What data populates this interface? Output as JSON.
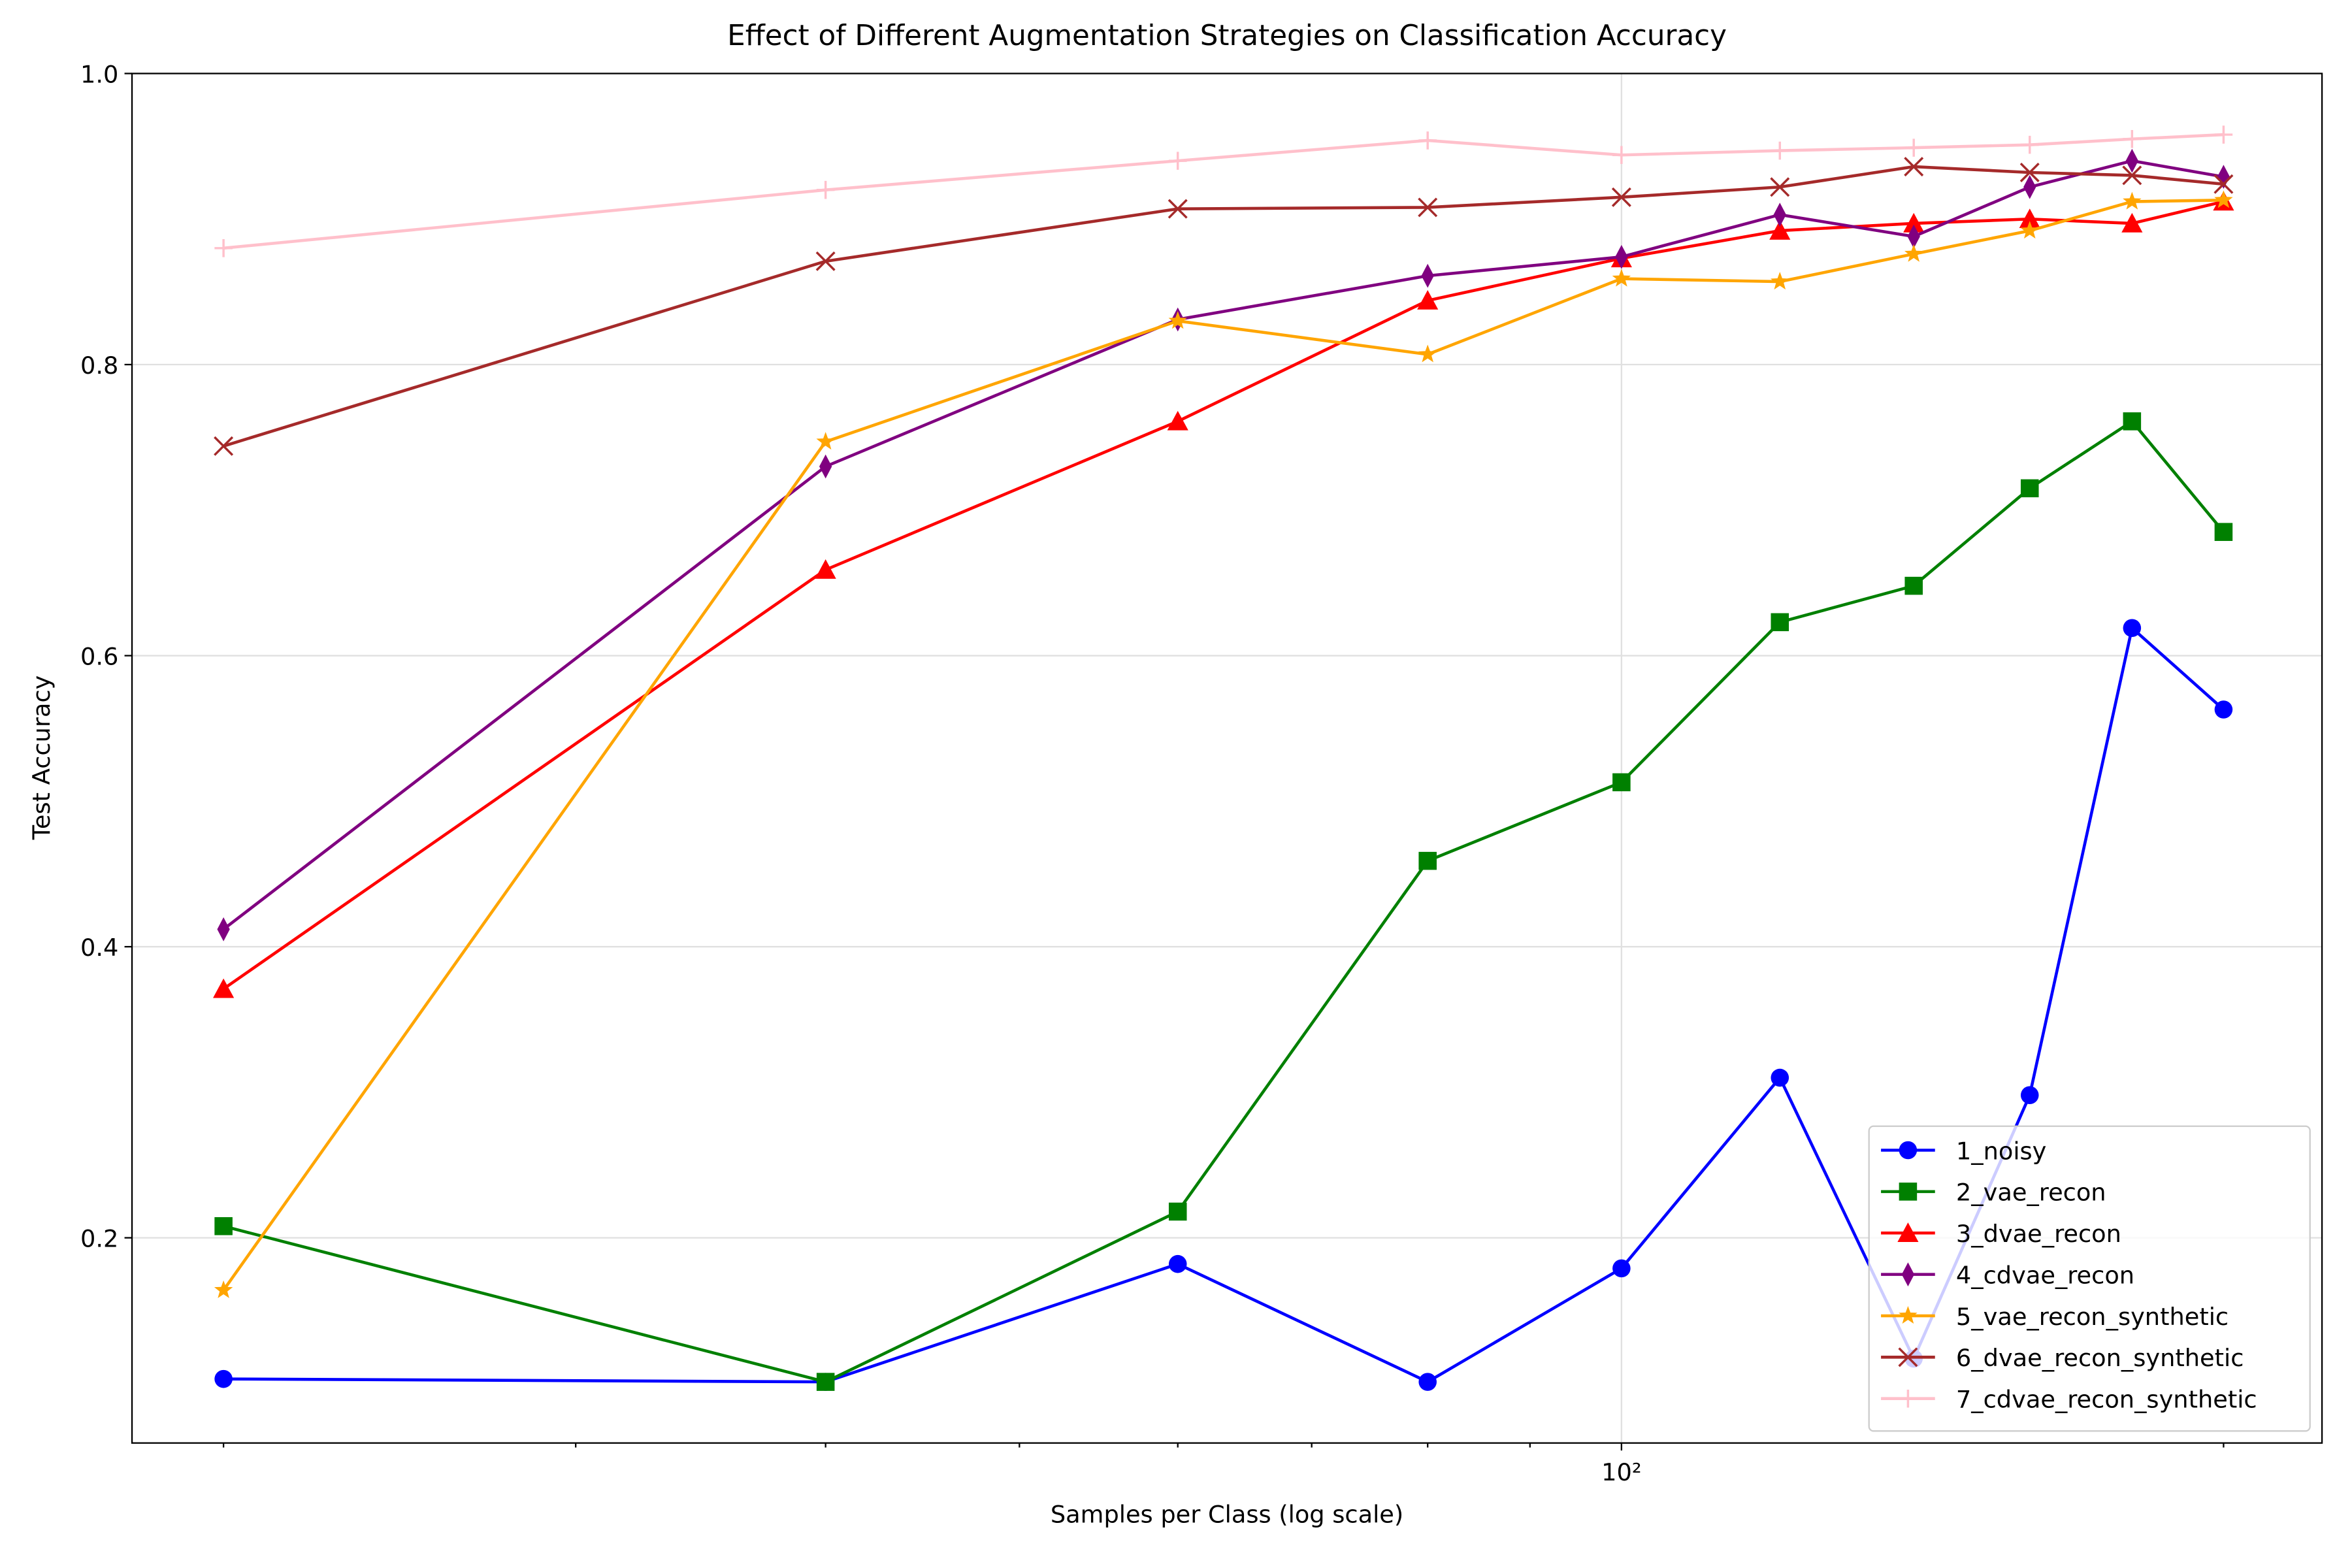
{
  "chart_data": {
    "type": "line",
    "title": "Effect of Different Augmentation Strategies on Classification Accuracy",
    "x_label": "Samples per Class (log scale)",
    "y_label": "Test Accuracy",
    "x_log": true,
    "grid": true,
    "legend_position": "lower right",
    "x": [
      20,
      40,
      60,
      80,
      100,
      120,
      140,
      160,
      180,
      200
    ],
    "xlim": [
      18,
      224
    ],
    "xticks": [
      {
        "value": 100,
        "label": "10²"
      }
    ],
    "xminor_ticks": [
      20,
      30,
      40,
      50,
      60,
      70,
      80,
      90,
      200
    ],
    "ylim": [
      0.059,
      1.0
    ],
    "yticks": [
      0.2,
      0.4,
      0.6,
      0.8,
      {
        "value": 1.0,
        "label": "1.0"
      }
    ],
    "series": [
      {
        "name": "1_noisy",
        "color": "#0000ff",
        "marker": "circle",
        "values": [
          0.103,
          0.101,
          0.182,
          0.101,
          0.179,
          0.31,
          0.117,
          0.298,
          0.619,
          0.563
        ]
      },
      {
        "name": "2_vae_recon",
        "color": "#008000",
        "marker": "square",
        "values": [
          0.208,
          0.101,
          0.218,
          0.459,
          0.513,
          0.623,
          0.648,
          0.715,
          0.761,
          0.685
        ]
      },
      {
        "name": "3_dvae_recon",
        "color": "#ff0000",
        "marker": "triangle",
        "values": [
          0.371,
          0.659,
          0.761,
          0.844,
          0.873,
          0.892,
          0.897,
          0.9,
          0.897,
          0.912
        ]
      },
      {
        "name": "4_cdvae_recon",
        "color": "#800080",
        "marker": "thin_diamond",
        "values": [
          0.412,
          0.73,
          0.831,
          0.861,
          0.874,
          0.903,
          0.888,
          0.922,
          0.94,
          0.929
        ]
      },
      {
        "name": "5_vae_recon_synthetic",
        "color": "#ffa500",
        "marker": "star",
        "values": [
          0.164,
          0.747,
          0.83,
          0.807,
          0.859,
          0.857,
          0.876,
          0.892,
          0.912,
          0.913
        ]
      },
      {
        "name": "6_dvae_recon_synthetic",
        "color": "#a52a2a",
        "marker": "x",
        "values": [
          0.744,
          0.871,
          0.907,
          0.908,
          0.915,
          0.922,
          0.936,
          0.932,
          0.93,
          0.924
        ]
      },
      {
        "name": "7_cdvae_recon_synthetic",
        "color": "#ffc0cb",
        "marker": "plus",
        "values": [
          0.88,
          0.92,
          0.94,
          0.954,
          0.944,
          0.947,
          0.949,
          0.951,
          0.955,
          0.958
        ]
      }
    ]
  }
}
